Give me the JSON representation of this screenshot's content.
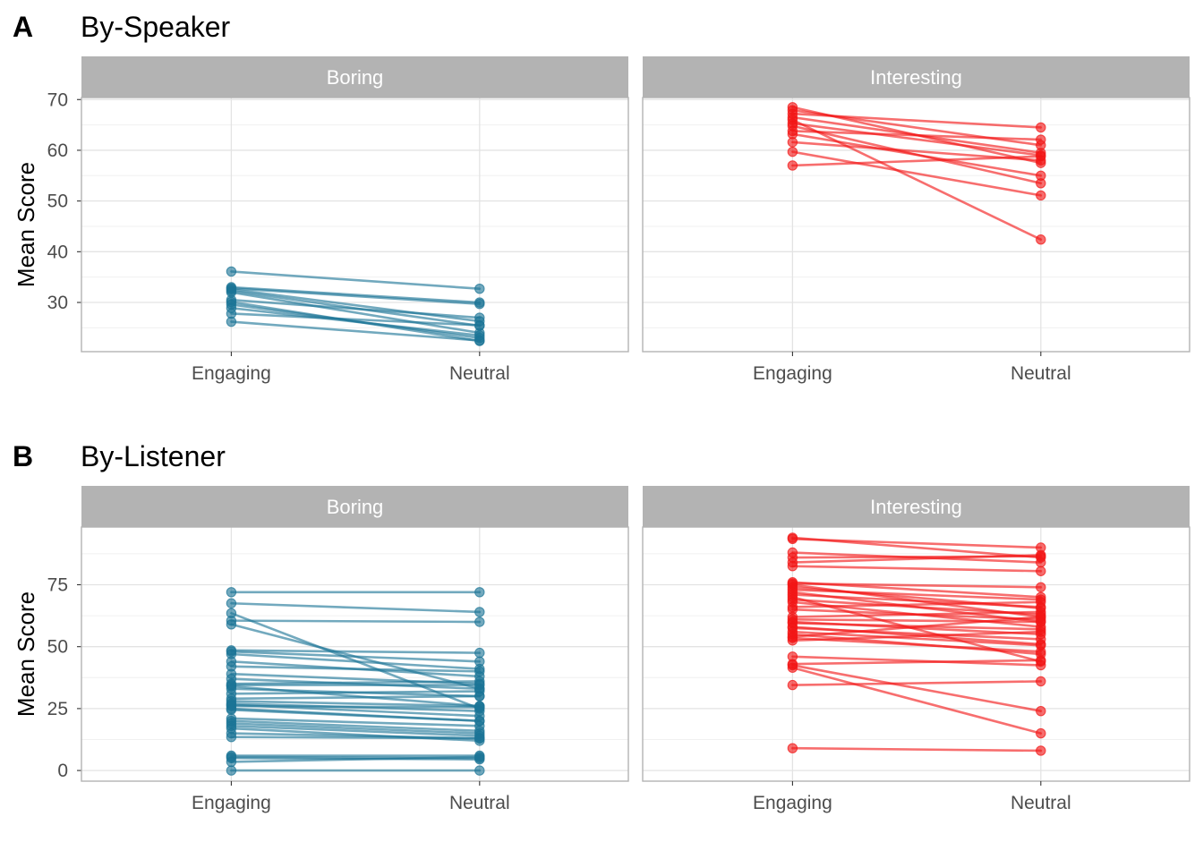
{
  "chart_data": [
    {
      "type": "line",
      "tag": "A",
      "title": "By-Speaker",
      "ylabel": "Mean Score",
      "x_categories": [
        "Engaging",
        "Neutral"
      ],
      "y_ticks": [
        30,
        40,
        50,
        60,
        70
      ],
      "ylim": [
        20.3,
        70.4
      ],
      "grid": true,
      "facets": [
        {
          "label": "Boring",
          "color": "#1b7496",
          "pairs": [
            [
              36.1,
              32.7
            ],
            [
              33.0,
              30.0
            ],
            [
              32.8,
              29.7
            ],
            [
              32.6,
              26.3
            ],
            [
              32.3,
              25.4
            ],
            [
              32.0,
              24.0
            ],
            [
              30.5,
              27.0
            ],
            [
              30.1,
              22.4
            ],
            [
              29.6,
              23.0
            ],
            [
              28.9,
              23.5
            ],
            [
              27.8,
              25.5
            ],
            [
              26.2,
              22.5
            ]
          ]
        },
        {
          "label": "Interesting",
          "color": "#f21515",
          "pairs": [
            [
              68.5,
              57.5
            ],
            [
              67.9,
              61.0
            ],
            [
              67.2,
              64.5
            ],
            [
              66.5,
              59.5
            ],
            [
              66.0,
              42.4
            ],
            [
              65.3,
              59.0
            ],
            [
              64.8,
              53.5
            ],
            [
              63.8,
              62.1
            ],
            [
              63.2,
              55.0
            ],
            [
              61.6,
              58.0
            ],
            [
              59.7,
              51.1
            ],
            [
              57.0,
              58.8
            ]
          ]
        }
      ]
    },
    {
      "type": "line",
      "tag": "B",
      "title": "By-Listener",
      "ylabel": "Mean Score",
      "x_categories": [
        "Engaging",
        "Neutral"
      ],
      "y_ticks": [
        0,
        25,
        50,
        75
      ],
      "ylim": [
        -4.3,
        98.3
      ],
      "grid": true,
      "facets": [
        {
          "label": "Boring",
          "color": "#1b7496",
          "pairs": [
            [
              72,
              72
            ],
            [
              67.5,
              64
            ],
            [
              63.5,
              25
            ],
            [
              60.5,
              60
            ],
            [
              59,
              33
            ],
            [
              48.5,
              47.5
            ],
            [
              48,
              44
            ],
            [
              47,
              41
            ],
            [
              44,
              38
            ],
            [
              42,
              40
            ],
            [
              39,
              35
            ],
            [
              37,
              33
            ],
            [
              35,
              36
            ],
            [
              34.5,
              34.5
            ],
            [
              34,
              26
            ],
            [
              33,
              30
            ],
            [
              31,
              32
            ],
            [
              29,
              30
            ],
            [
              28,
              26
            ],
            [
              27,
              24
            ],
            [
              26.5,
              22
            ],
            [
              26,
              25.5
            ],
            [
              25,
              20
            ],
            [
              24.5,
              20
            ],
            [
              21,
              18
            ],
            [
              20,
              16
            ],
            [
              19,
              15
            ],
            [
              18,
              14
            ],
            [
              17,
              12
            ],
            [
              15,
              13
            ],
            [
              13.5,
              13
            ],
            [
              6,
              6
            ],
            [
              5.5,
              5
            ],
            [
              5,
              4.5
            ],
            [
              3.5,
              5.5
            ],
            [
              0,
              0
            ]
          ]
        },
        {
          "label": "Interesting",
          "color": "#f21515",
          "pairs": [
            [
              94,
              86
            ],
            [
              93.5,
              90
            ],
            [
              88,
              84
            ],
            [
              86,
              86.5
            ],
            [
              84,
              87
            ],
            [
              82.5,
              80.5
            ],
            [
              76,
              70
            ],
            [
              75.5,
              74
            ],
            [
              75,
              62
            ],
            [
              74,
              65.5
            ],
            [
              73,
              69
            ],
            [
              72,
              60
            ],
            [
              71,
              66
            ],
            [
              70,
              44
            ],
            [
              69,
              63
            ],
            [
              68,
              58
            ],
            [
              66,
              68
            ],
            [
              65,
              61
            ],
            [
              62,
              64
            ],
            [
              61,
              60
            ],
            [
              60,
              55
            ],
            [
              59.5,
              57
            ],
            [
              58,
              51
            ],
            [
              57.5,
              53
            ],
            [
              56,
              50.5
            ],
            [
              55,
              47
            ],
            [
              54,
              62
            ],
            [
              53.5,
              48
            ],
            [
              52.5,
              56
            ],
            [
              46,
              42.5
            ],
            [
              43,
              44.5
            ],
            [
              42.5,
              24
            ],
            [
              41.5,
              15
            ],
            [
              34.5,
              36
            ],
            [
              9,
              8
            ]
          ]
        }
      ]
    }
  ]
}
